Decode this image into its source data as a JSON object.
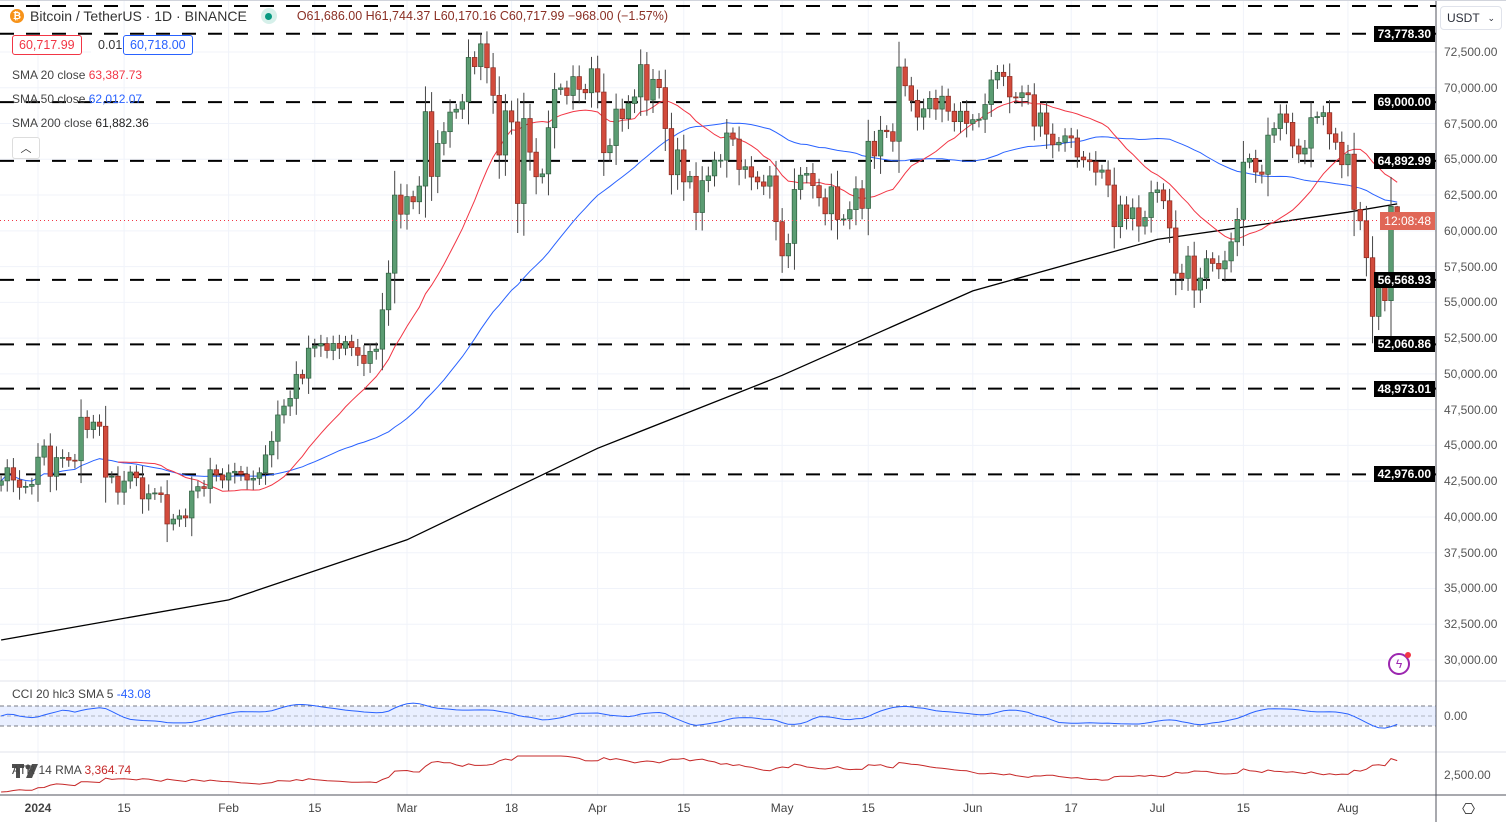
{
  "header": {
    "symbol": "Bitcoin / TetherUS · 1D · BINANCE",
    "open": "O61,686.00",
    "high": "H61,744.37",
    "low": "L60,170.16",
    "close": "C60,717.99",
    "change": "−968.00 (−1.57%)",
    "bid": "60,717.99",
    "spread": "0.01",
    "ask": "60,718.00",
    "collapse_icon": "chevron-up-icon"
  },
  "indicators": {
    "sma20": {
      "label": "SMA 20 close",
      "value": "63,387.73",
      "color": "#f23645"
    },
    "sma50": {
      "label": "SMA 50 close",
      "value": "62,012.07",
      "color": "#2962ff"
    },
    "sma200": {
      "label": "SMA 200 close",
      "value": "61,882.36",
      "color": "#000000"
    },
    "cci": {
      "label": "CCI 20 hlc3 SMA 5",
      "value": "-43.08",
      "color": "#2962ff",
      "axis_label": "0.00"
    },
    "atr": {
      "label": "ATR 14 RMA",
      "value": "3,364.74",
      "color": "#c62828",
      "axis_label": "2,500.00"
    }
  },
  "currency": "USDT",
  "countdown": "12:08:48",
  "colors": {
    "up": "#5b9c72",
    "down": "#d24b3c",
    "grid": "#f0f3fa"
  },
  "chart_data": {
    "type": "candlestick",
    "title": "Bitcoin / TetherUS · 1D · BINANCE",
    "ylim": [
      28500,
      76000
    ],
    "y_ticks": [
      "72,500.00",
      "70,000.00",
      "67,500.00",
      "65,000.00",
      "62,500.00",
      "60,000.00",
      "57,500.00",
      "55,000.00",
      "52,500.00",
      "50,000.00",
      "47,500.00",
      "45,000.00",
      "42,500.00",
      "40,000.00",
      "37,500.00",
      "35,000.00",
      "32,500.00",
      "30,000.00"
    ],
    "x_ticks": [
      {
        "date": "2024-01-01",
        "label": "2024"
      },
      {
        "date": "2024-01-15",
        "label": "15"
      },
      {
        "date": "2024-02-01",
        "label": "Feb"
      },
      {
        "date": "2024-02-15",
        "label": "15"
      },
      {
        "date": "2024-03-01",
        "label": "Mar"
      },
      {
        "date": "2024-03-18",
        "label": "18"
      },
      {
        "date": "2024-04-01",
        "label": "Apr"
      },
      {
        "date": "2024-04-15",
        "label": "15"
      },
      {
        "date": "2024-05-01",
        "label": "May"
      },
      {
        "date": "2024-05-15",
        "label": "15"
      },
      {
        "date": "2024-06-01",
        "label": "Jun"
      },
      {
        "date": "2024-06-17",
        "label": "17"
      },
      {
        "date": "2024-07-01",
        "label": "Jul"
      },
      {
        "date": "2024-07-15",
        "label": "15"
      },
      {
        "date": "2024-08-01",
        "label": "Aug"
      }
    ],
    "levels": [
      {
        "price": 73778.3,
        "label": "73,778.30"
      },
      {
        "price": 69000.0,
        "label": "69,000.00"
      },
      {
        "price": 64892.99,
        "label": "64,892.99"
      },
      {
        "price": 56568.93,
        "label": "56,568.93"
      },
      {
        "price": 52060.86,
        "label": "52,060.86"
      },
      {
        "price": 48973.01,
        "label": "48,973.01"
      },
      {
        "price": 42976.0,
        "label": "42,976.00"
      }
    ],
    "last_bar": {
      "open": 61686.0,
      "high": 61744.37,
      "low": 60170.16,
      "close": 60717.99
    },
    "closes": [
      {
        "month": "2023-12",
        "from_day": 26,
        "values": [
          42520,
          43440,
          42580,
          42070,
          42140,
          42280
        ]
      },
      {
        "month": "2024-01",
        "from_day": 1,
        "values": [
          44180,
          44960,
          42840,
          44150,
          44160,
          43970,
          43930,
          46970,
          46110,
          46630,
          46340,
          42780,
          42850,
          41730,
          42510,
          43140,
          42740,
          41260,
          41620,
          41680,
          41560,
          39510,
          39850,
          40080,
          39930,
          41810,
          42120,
          41990,
          43300,
          42940,
          42580
        ]
      },
      {
        "month": "2024-02",
        "from_day": 1,
        "values": [
          43080,
          43190,
          42990,
          42580,
          42700,
          43090,
          44340,
          45290,
          47130,
          47750,
          48290,
          49960,
          49700,
          51800,
          51950,
          52120,
          51640,
          52130,
          51790,
          52260,
          51840,
          51300,
          50730,
          51570,
          51730,
          54480,
          57040,
          62500,
          61160
        ]
      },
      {
        "month": "2024-03",
        "from_day": 1,
        "values": [
          62390,
          62030,
          63130,
          68330,
          63800,
          66110,
          66930,
          68300,
          68500,
          69020,
          72120,
          71480,
          73070,
          71400,
          69470,
          65300,
          68390,
          67610,
          61910,
          67850,
          65500,
          63780,
          63980,
          67210,
          69880,
          69990,
          69460,
          70780,
          69890,
          69650,
          71330
        ]
      },
      {
        "month": "2024-04",
        "from_day": 1,
        "values": [
          69700,
          65460,
          65960,
          68510,
          67840,
          68900,
          69360,
          71620,
          69140,
          70590,
          70010,
          67150,
          63920,
          65660,
          63420,
          63810,
          61280,
          63510,
          63840,
          64940,
          64940,
          66840,
          66410,
          64290,
          64480,
          63760,
          63420,
          63120,
          63840,
          60640
        ]
      },
      {
        "month": "2024-05",
        "from_day": 1,
        "values": [
          58250,
          59120,
          62890,
          63890,
          64010,
          63160,
          62310,
          61190,
          63080,
          60790,
          60830,
          61480,
          62940,
          61570,
          66260,
          65230,
          67030,
          66930,
          66260,
          71450,
          70140,
          69120,
          67950,
          68530,
          69260,
          68510,
          69410,
          68360,
          67630,
          68360,
          67500
        ]
      },
      {
        "month": "2024-06",
        "from_day": 1,
        "values": [
          67770,
          67800,
          68830,
          70550,
          71080,
          70790,
          69360,
          69310,
          69650,
          69510,
          67320,
          68240,
          66760,
          66010,
          66190,
          66640,
          66490,
          65160,
          64960,
          64830,
          64100,
          64250,
          63200,
          60290,
          61810,
          60850,
          61610,
          60330,
          60930,
          62670
        ]
      },
      {
        "month": "2024-07",
        "from_day": 1,
        "values": [
          62860,
          62100,
          60200,
          57040,
          56680,
          58240,
          55860,
          56700,
          58050,
          57720,
          57340,
          57900,
          59230,
          60800,
          64800,
          65060,
          64110,
          63950,
          66690,
          67150,
          68170,
          67580,
          65930,
          65370,
          65780,
          67910,
          67990,
          68260,
          66780,
          66190,
          64620
        ]
      },
      {
        "month": "2024-08",
        "from_day": 1,
        "values": [
          65360,
          61500,
          60700,
          58120,
          54020,
          56040,
          55120,
          61710,
          60717.99
        ]
      }
    ],
    "sma200_points": [
      {
        "date": "2023-12-26",
        "value": 31400
      },
      {
        "date": "2024-02-01",
        "value": 34200
      },
      {
        "date": "2024-03-01",
        "value": 38400
      },
      {
        "date": "2024-04-01",
        "value": 44800
      },
      {
        "date": "2024-05-01",
        "value": 49900
      },
      {
        "date": "2024-06-01",
        "value": 55800
      },
      {
        "date": "2024-07-01",
        "value": 59400
      },
      {
        "date": "2024-08-01",
        "value": 61300
      },
      {
        "date": "2024-08-09",
        "value": 61882.36
      }
    ]
  }
}
